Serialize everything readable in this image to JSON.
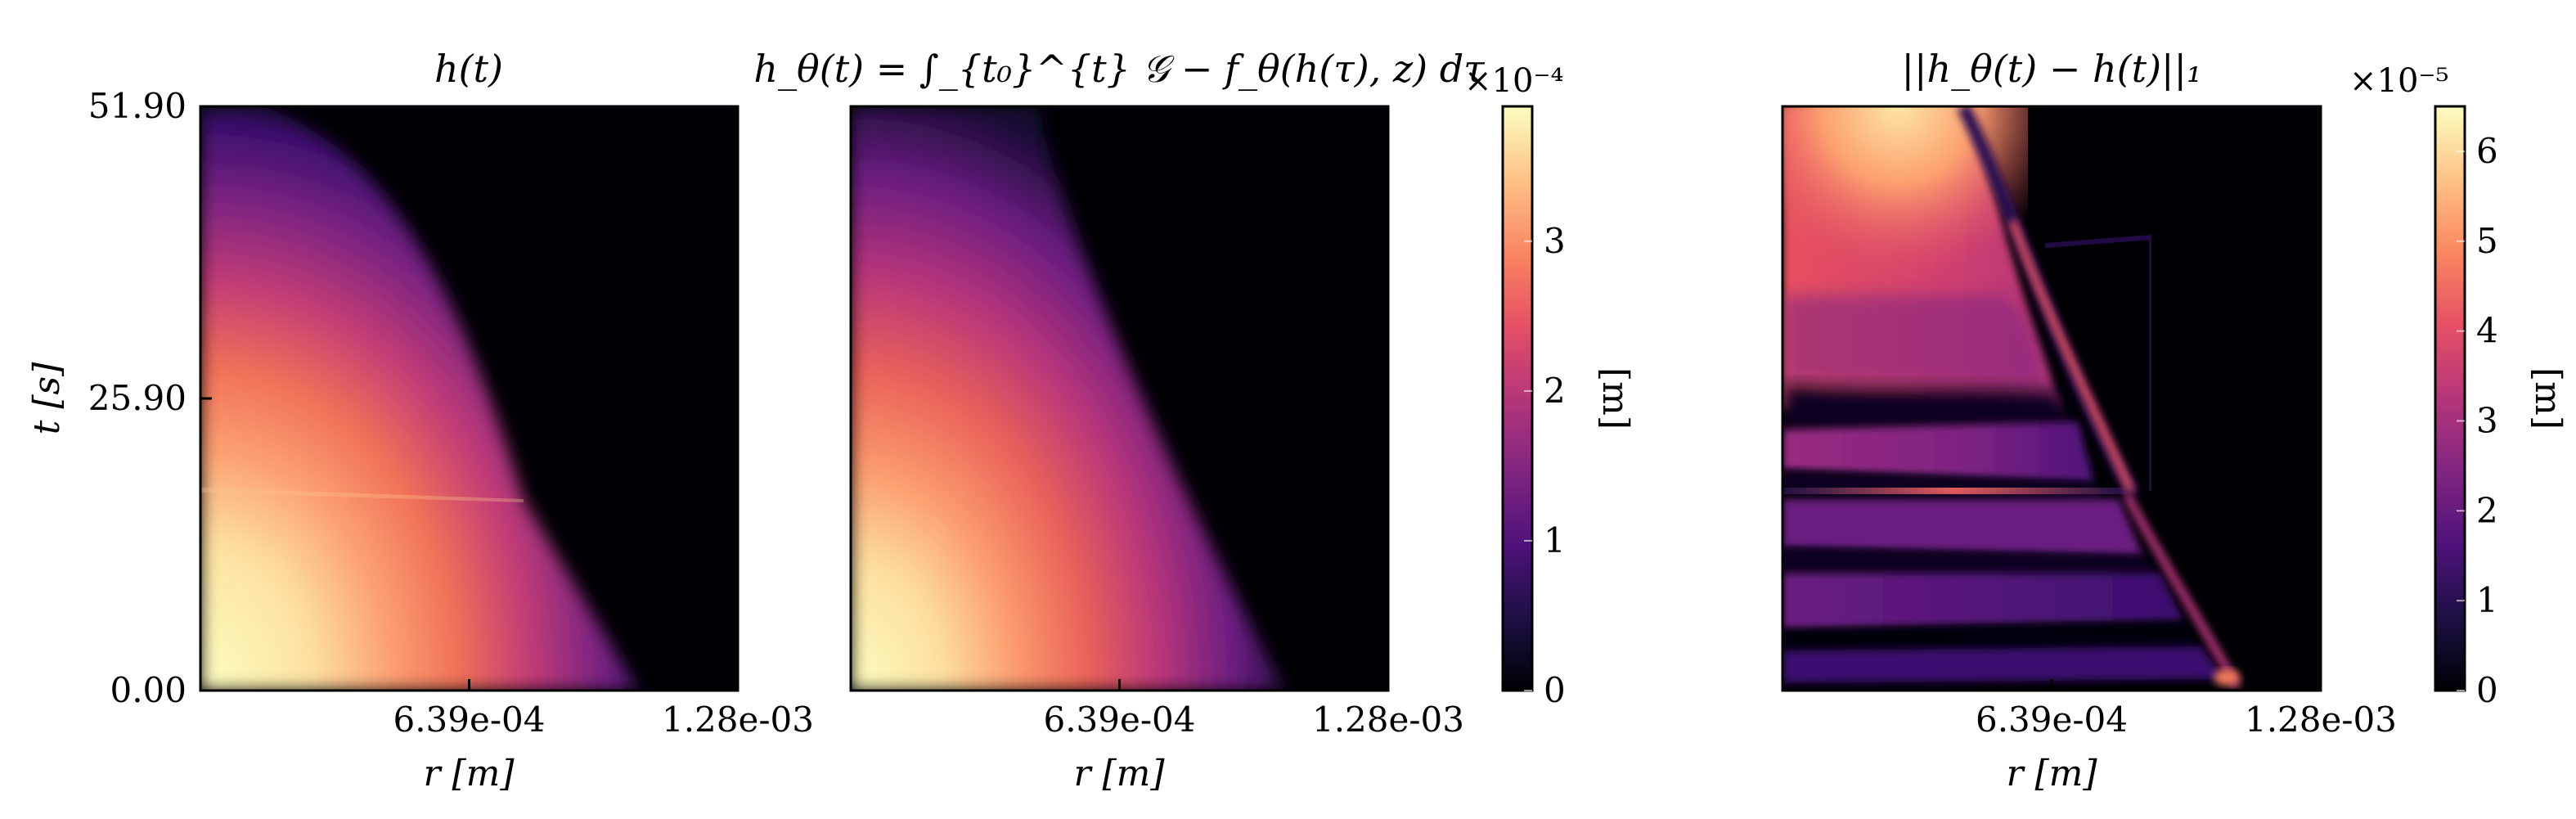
{
  "figure": {
    "panels": [
      {
        "title": "h(t)"
      },
      {
        "title": "h_θ(t) = ∫_{t₀}^{t} 𝒢 − f_θ(h(τ), z) dτ"
      },
      {
        "title": "||h_θ(t) − h(t)||₁"
      }
    ],
    "colorbars": [
      {
        "label": "[m]",
        "multiplier": "×10⁻⁴",
        "ticks": [
          "0",
          "1",
          "2",
          "3"
        ]
      },
      {
        "label": "[m]",
        "multiplier": "×10⁻⁵",
        "ticks": [
          "0",
          "1",
          "2",
          "3",
          "4",
          "5",
          "6"
        ]
      }
    ],
    "colormap": [
      "#000004",
      "#1c1044",
      "#4f127b",
      "#812581",
      "#b5367a",
      "#e55064",
      "#fb8761",
      "#fec287",
      "#fcfdbf"
    ]
  },
  "chart_data": [
    {
      "type": "heatmap",
      "title": "h(t)",
      "xlabel": "r [m]",
      "ylabel": "t [s]",
      "xticks": [
        "6.39e-04",
        "1.28e-03"
      ],
      "yticks": [
        "0.00",
        "25.90",
        "51.90"
      ],
      "xlim": [
        0,
        0.00128
      ],
      "ylim": [
        0,
        51.9
      ],
      "colorbar": "shared with panel 2",
      "colorbar_range": [
        0,
        0.00039
      ]
    },
    {
      "type": "heatmap",
      "title": "h_θ(t)",
      "xlabel": "r [m]",
      "xticks": [
        "6.39e-04",
        "1.28e-03"
      ],
      "xlim": [
        0,
        0.00128
      ],
      "ylim": [
        0,
        51.9
      ],
      "colorbar_label": "[m]",
      "colorbar_range": [
        0,
        0.00039
      ],
      "colorbar_ticks": [
        0,
        0.0001,
        0.0002,
        0.0003
      ]
    },
    {
      "type": "heatmap",
      "title": "||h_θ(t) − h(t)||₁",
      "xlabel": "r [m]",
      "xticks": [
        "6.39e-04",
        "1.28e-03"
      ],
      "xlim": [
        0,
        0.00128
      ],
      "ylim": [
        0,
        51.9
      ],
      "colorbar_label": "[m]",
      "colorbar_range": [
        0,
        6.5e-05
      ],
      "colorbar_ticks": [
        0,
        1e-05,
        2e-05,
        3e-05,
        4e-05,
        5e-05,
        6e-05
      ]
    }
  ]
}
